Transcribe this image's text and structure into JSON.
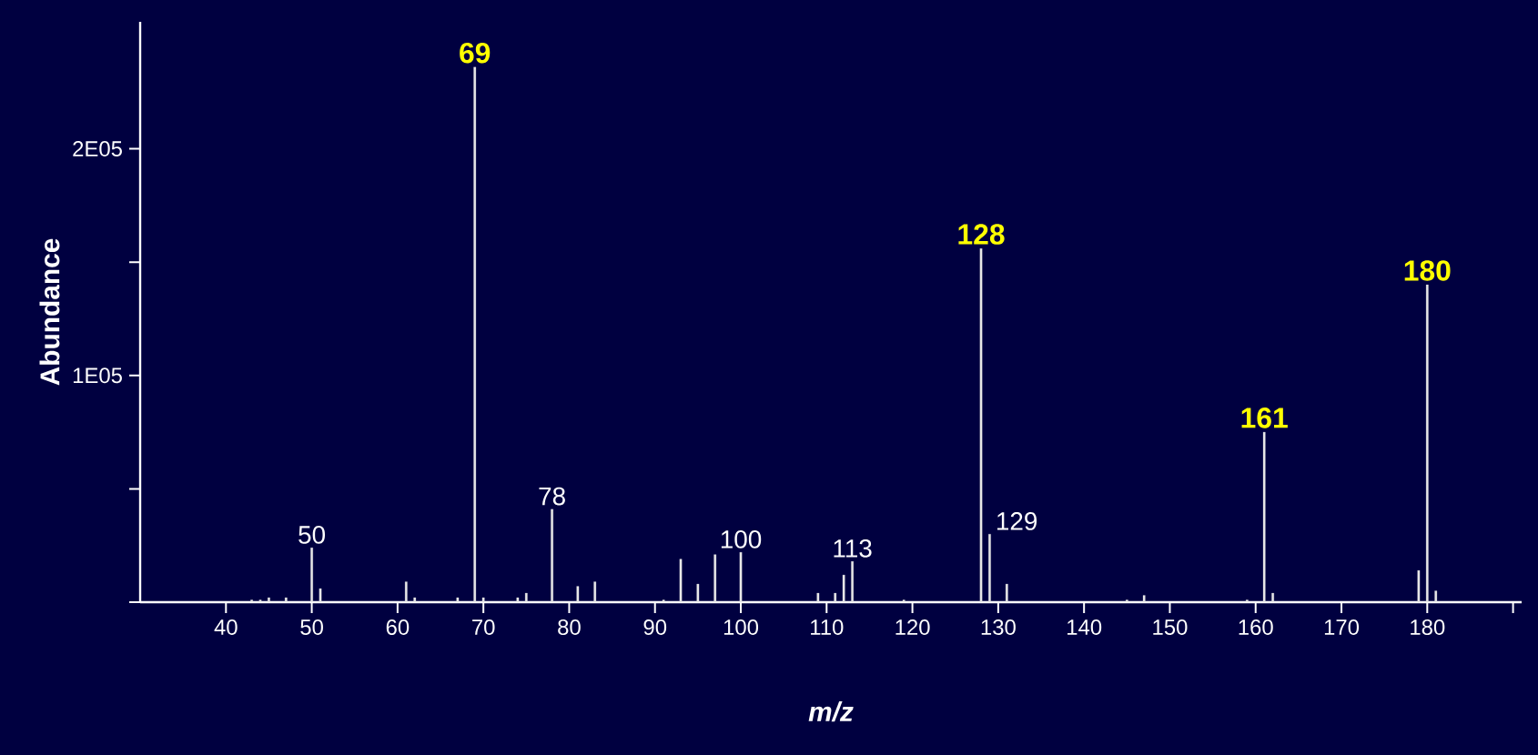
{
  "chart_data": {
    "type": "bar",
    "xlabel": "m/z",
    "ylabel": "Abundance",
    "color": "#e8e8e8",
    "x": [
      43,
      44,
      45,
      47,
      50,
      51,
      61,
      62,
      67,
      69,
      70,
      74,
      75,
      78,
      81,
      82,
      83,
      91,
      93,
      95,
      97,
      100,
      109,
      111,
      112,
      113,
      119,
      128,
      129,
      131,
      145,
      147,
      159,
      161,
      162,
      179,
      180,
      181
    ],
    "values": [
      1000,
      1000,
      2000,
      2000,
      24000,
      6000,
      9000,
      2000,
      2000,
      236000,
      2000,
      2000,
      4000,
      41000,
      7000,
      null,
      9000,
      1000,
      19000,
      8000,
      21000,
      22000,
      4000,
      4000,
      12000,
      18000,
      1000,
      156000,
      30000,
      8000,
      1000,
      3000,
      1000,
      75000,
      4000,
      14000,
      140000,
      5000
    ],
    "xlim": [
      30,
      191
    ],
    "xticks": [
      40,
      50,
      60,
      70,
      80,
      90,
      100,
      110,
      120,
      130,
      140,
      150,
      160,
      170,
      180,
      {
        "value": 190,
        "label": null
      }
    ],
    "ylim": [
      0,
      256000
    ],
    "yticks": [
      {
        "value": 0,
        "label": null
      },
      {
        "value": 50000,
        "label": null
      },
      {
        "value": 100000,
        "label": "1E05"
      },
      {
        "value": 150000,
        "label": null
      },
      {
        "value": 200000,
        "label": "2E05"
      }
    ],
    "annotations": [
      {
        "text": "50",
        "x": 50,
        "y": 24000
      },
      {
        "text": "69",
        "x": 69,
        "y": 236000
      },
      {
        "text": "78",
        "x": 78,
        "y": 41000
      },
      {
        "text": "100",
        "x": 100,
        "y": 22000
      },
      {
        "text": "113",
        "x": 113,
        "y": 18000
      },
      {
        "text": "128",
        "x": 128,
        "y": 156000
      },
      {
        "text": "129",
        "x": 129,
        "y": 30000
      },
      {
        "text": "161",
        "x": 161,
        "y": 75000
      },
      {
        "text": "180",
        "x": 180,
        "y": 140000
      }
    ]
  }
}
